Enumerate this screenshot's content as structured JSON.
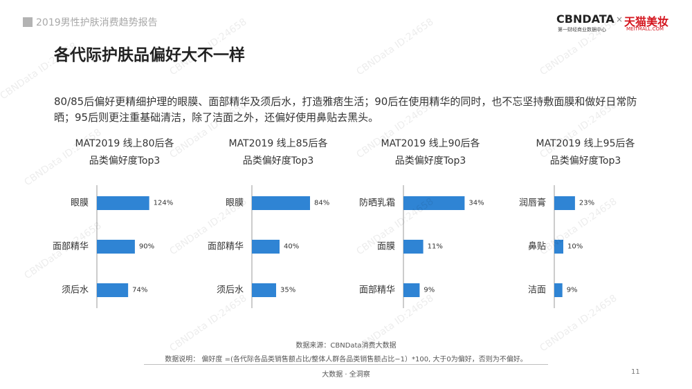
{
  "header": {
    "report_title": "2019男性护肤消费趋势报告",
    "logo_cbn": "CBNDATA",
    "logo_cbn_sub": "第一财经商业数据中心",
    "logo_separator": "×",
    "logo_tmall": "天猫美妆",
    "logo_tmall_sub": "MEITMALL.COM"
  },
  "page": {
    "heading": "各代际护肤品偏好大不一样",
    "summary": "80/85后偏好更精细护理的眼膜、面部精华及须后水，打造雅痞生活；90后在使用精华的同时，也不忘坚持敷面膜和做好日常防晒；95后则更注重基础清洁，除了洁面之外，还偏好使用鼻贴去黑头。"
  },
  "colors": {
    "bar": "#2f84d4",
    "axis": "#999999"
  },
  "chart_data": [
    {
      "type": "bar",
      "orientation": "horizontal",
      "title_line1": "MAT2019 线上80后各",
      "title_line2": "品类偏好度Top3",
      "categories": [
        "眼膜",
        "面部精华",
        "须后水"
      ],
      "values": [
        124,
        90,
        74
      ],
      "value_labels": [
        "124%",
        "90%",
        "74%"
      ]
    },
    {
      "type": "bar",
      "orientation": "horizontal",
      "title_line1": "MAT2019 线上85后各",
      "title_line2": "品类偏好度Top3",
      "categories": [
        "眼膜",
        "面部精华",
        "须后水"
      ],
      "values": [
        84,
        40,
        35
      ],
      "value_labels": [
        "84%",
        "40%",
        "35%"
      ]
    },
    {
      "type": "bar",
      "orientation": "horizontal",
      "title_line1": "MAT2019 线上90后各",
      "title_line2": "品类偏好度Top3",
      "categories": [
        "防晒乳霜",
        "面膜",
        "面部精华"
      ],
      "values": [
        34,
        11,
        9
      ],
      "value_labels": [
        "34%",
        "11%",
        "9%"
      ]
    },
    {
      "type": "bar",
      "orientation": "horizontal",
      "title_line1": "MAT2019 线上95后各",
      "title_line2": "品类偏好度Top3",
      "categories": [
        "润唇膏",
        "鼻贴",
        "洁面"
      ],
      "values": [
        23,
        10,
        9
      ],
      "value_labels": [
        "23%",
        "10%",
        "9%"
      ]
    }
  ],
  "footer": {
    "source": "数据来源：CBNData消费大数据",
    "note": "数据说明： 偏好度 =(各代际各品类销售额占比/整体人群各品类销售额占比−1）*100, 大于0为偏好，否则为不偏好。",
    "brand": "大数据 · 全洞察",
    "page_number": "11"
  },
  "watermark": "CBNData ID:24658"
}
